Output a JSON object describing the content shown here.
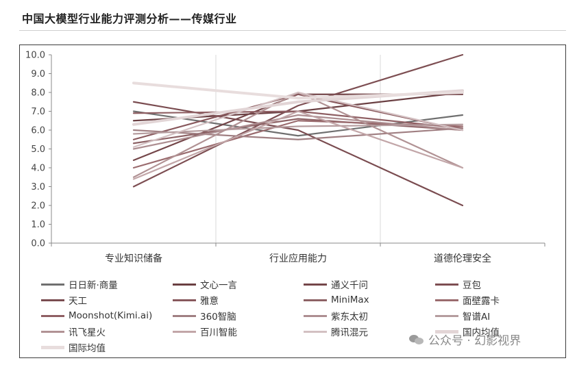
{
  "title": "中国大模型行业能力评测分析——传媒行业",
  "watermark": "公众号 · 幻影视界",
  "chart_data": {
    "type": "line",
    "categories": [
      "专业知识储备",
      "行业应用能力",
      "道德伦理安全"
    ],
    "ylim": [
      0,
      10
    ],
    "yticks": [
      "0.0",
      "1.0",
      "2.0",
      "3.0",
      "4.0",
      "5.0",
      "6.0",
      "7.0",
      "8.0",
      "9.0",
      "10.0"
    ],
    "grid": "vertical",
    "legend_position": "bottom",
    "series": [
      {
        "name": "日日新·商量",
        "color": "#6f6f6f",
        "values": [
          7.0,
          5.7,
          6.8
        ]
      },
      {
        "name": "文心一言",
        "color": "#6a3f42",
        "values": [
          6.5,
          7.0,
          8.0
        ]
      },
      {
        "name": "通义千问",
        "color": "#744649",
        "values": [
          4.4,
          7.9,
          7.9
        ]
      },
      {
        "name": "豆包",
        "color": "#7d4e52",
        "values": [
          3.0,
          7.3,
          10.0
        ]
      },
      {
        "name": "天工",
        "color": "#7a4c50",
        "values": [
          7.5,
          6.0,
          2.0
        ]
      },
      {
        "name": "雅意",
        "color": "#88585c",
        "values": [
          5.5,
          7.9,
          6.0
        ]
      },
      {
        "name": "MiniMax",
        "color": "#8d6265",
        "values": [
          5.3,
          6.6,
          6.0
        ]
      },
      {
        "name": "面壁露卡",
        "color": "#9a6b6e",
        "values": [
          4.0,
          6.5,
          6.2
        ]
      },
      {
        "name": "Moonshot(Kimi.ai)",
        "color": "#8f5f63",
        "values": [
          6.9,
          7.0,
          6.1
        ]
      },
      {
        "name": "360智脑",
        "color": "#a07f82",
        "values": [
          6.0,
          5.5,
          6.1
        ]
      },
      {
        "name": "紫东太初",
        "color": "#ad8e91",
        "values": [
          5.0,
          6.8,
          6.0
        ]
      },
      {
        "name": "智谱AI",
        "color": "#b59c9e",
        "values": [
          5.8,
          6.2,
          6.3
        ]
      },
      {
        "name": "讯飞星火",
        "color": "#b19294",
        "values": [
          3.5,
          8.0,
          4.0
        ]
      },
      {
        "name": "百川智能",
        "color": "#c2a6a8",
        "values": [
          3.4,
          7.0,
          4.0
        ]
      },
      {
        "name": "腾讯混元",
        "color": "#d3c0c2",
        "values": [
          5.1,
          8.0,
          6.0
        ]
      },
      {
        "name": "国内均值",
        "color": "#e2d5d6",
        "values": [
          6.3,
          7.5,
          8.1
        ]
      },
      {
        "name": "国际均值",
        "color": "#e8dddd",
        "values": [
          8.5,
          7.7,
          8.0
        ]
      }
    ]
  }
}
